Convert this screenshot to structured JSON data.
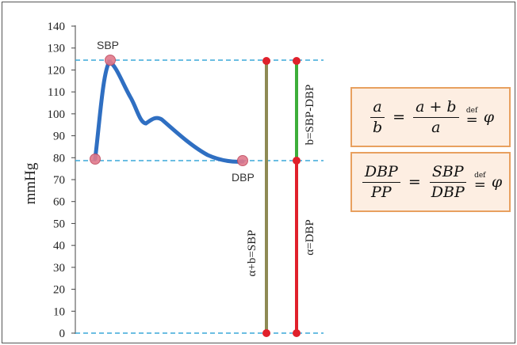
{
  "axis": {
    "ylabel": "mmHg",
    "ticks": [
      "0",
      "10",
      "20",
      "30",
      "40",
      "50",
      "60",
      "70",
      "80",
      "90",
      "100",
      "110",
      "120",
      "130",
      "140"
    ]
  },
  "points": {
    "sbp_label": "SBP",
    "dbp_label": "DBP"
  },
  "vertical_labels": {
    "a_plus_b": "α+b=SBP",
    "b": "b=SBP-DBP",
    "a": "α=DBP"
  },
  "formula1": {
    "frac1_num": "a",
    "frac1_den": "b",
    "eq": "=",
    "frac2_num": "a + b",
    "frac2_den": "a",
    "def_text": "def",
    "def_sym": "=",
    "phi": "φ"
  },
  "formula2": {
    "frac1_num": "DBP",
    "frac1_den": "PP",
    "eq": "=",
    "frac2_num": "SBP",
    "frac2_den": "DBP",
    "def_text": "def",
    "def_sym": "=",
    "phi": "φ"
  },
  "colors": {
    "wave": "#2f6fc2",
    "dashed": "#3aa9d8",
    "olive": "#8e8a54",
    "green": "#3dae3a",
    "red": "#e0202b",
    "box_fill": "#fdeee2",
    "box_border": "#e8a05f"
  },
  "values": {
    "sbp": 125,
    "dbp": 79,
    "axis_min": 0,
    "axis_max": 140
  }
}
